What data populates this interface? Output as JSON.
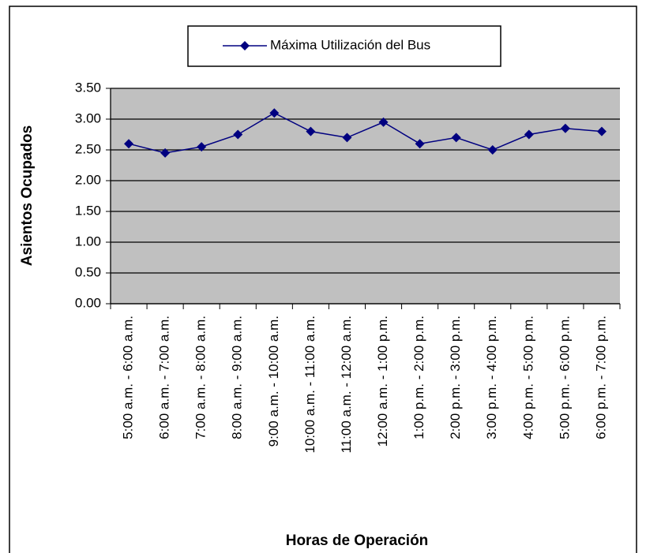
{
  "chart_data": {
    "type": "line",
    "xlabel": "Horas de Operación",
    "ylabel": "Asientos Ocupados",
    "categories": [
      "5:00 a.m. - 6:00 a.m.",
      "6:00 a.m. - 7:00 a.m.",
      "7:00 a.m. - 8:00 a.m.",
      "8:00 a.m. - 9:00 a.m.",
      "9:00 a.m. - 10:00 a.m.",
      "10:00 a.m. - 11:00 a.m.",
      "11:00 a.m. - 12:00 a.m.",
      "12:00 a.m. - 1:00 p.m.",
      "1:00 p.m. - 2:00 p.m.",
      "2:00 p.m. - 3:00 p.m.",
      "3:00 p.m. - 4:00 p.m.",
      "4:00 p.m. - 5:00 p.m.",
      "5:00 p.m. - 6:00 p.m.",
      "6:00 p.m. - 7:00 p.m."
    ],
    "series": [
      {
        "name": "Máxima Utilización del Bus",
        "color": "#000080",
        "values": [
          2.6,
          2.45,
          2.55,
          2.75,
          3.1,
          2.8,
          2.7,
          2.95,
          2.6,
          2.7,
          2.5,
          2.75,
          2.85,
          2.8
        ]
      }
    ],
    "ylim": [
      0,
      3.5
    ],
    "yticks": [
      {
        "value": 0,
        "label": "0.00"
      },
      {
        "value": 0.5,
        "label": "0.50"
      },
      {
        "value": 1,
        "label": "1.00"
      },
      {
        "value": 1.5,
        "label": "1.50"
      },
      {
        "value": 2,
        "label": "2.00"
      },
      {
        "value": 2.5,
        "label": "2.50"
      },
      {
        "value": 3,
        "label": "3.00"
      },
      {
        "value": 3.5,
        "label": "3.50"
      }
    ],
    "grid": true,
    "legend": "top"
  }
}
